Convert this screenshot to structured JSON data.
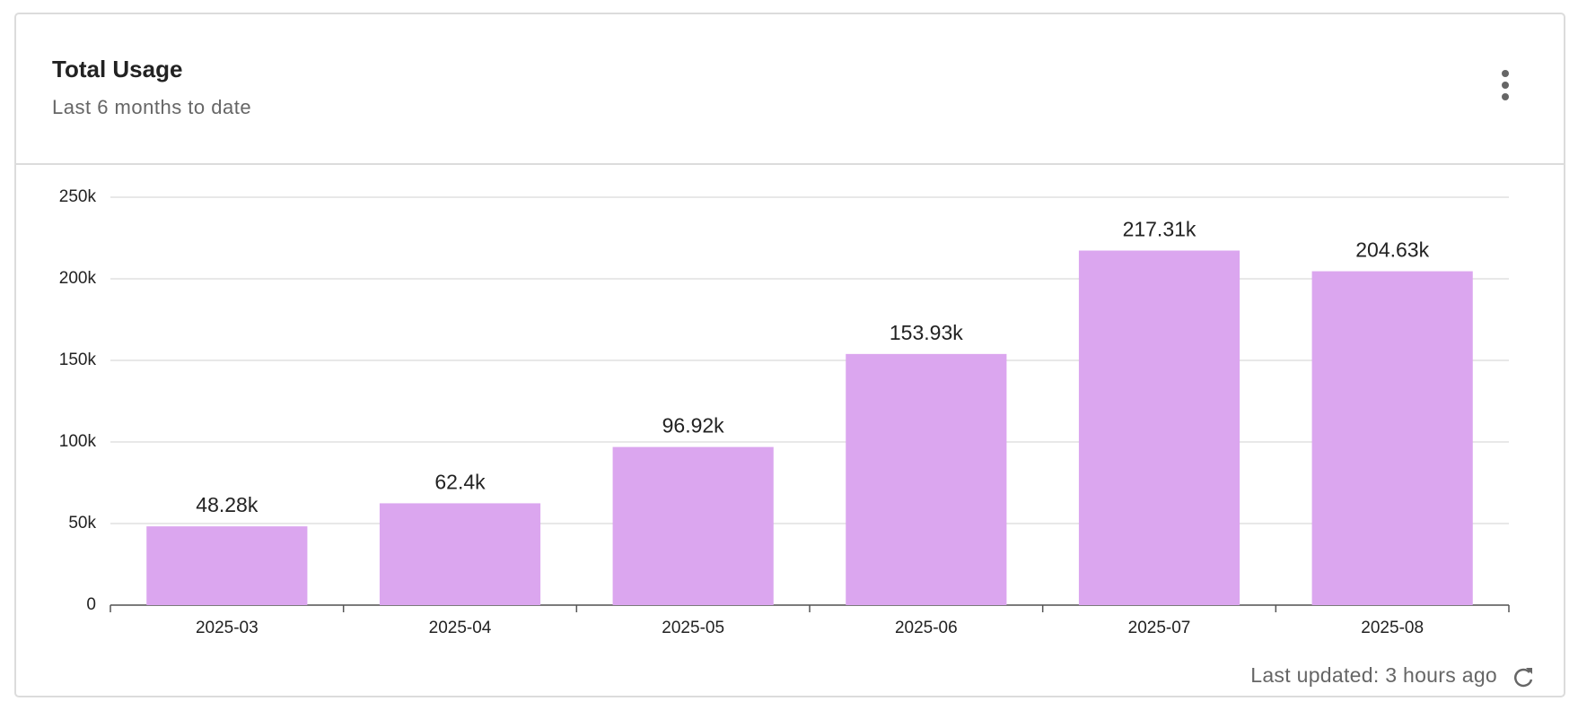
{
  "chart_data": {
    "type": "bar",
    "title": "Total Usage",
    "subtitle": "Last 6 months to date",
    "categories": [
      "2025-03",
      "2025-04",
      "2025-05",
      "2025-06",
      "2025-07",
      "2025-08"
    ],
    "values": [
      48280,
      62400,
      96920,
      153930,
      217310,
      204630
    ],
    "value_labels": [
      "48.28k",
      "62.4k",
      "96.92k",
      "153.93k",
      "217.31k",
      "204.63k"
    ],
    "color": "#dba6ef",
    "ylim": [
      0,
      250000
    ],
    "yticks": [
      {
        "value": 0,
        "label": "0"
      },
      {
        "value": 50000,
        "label": "50k"
      },
      {
        "value": 100000,
        "label": "100k"
      },
      {
        "value": 150000,
        "label": "150k"
      },
      {
        "value": 200000,
        "label": "200k"
      },
      {
        "value": 250000,
        "label": "250k"
      }
    ],
    "grid": true,
    "footer": "Last updated: 3 hours ago"
  }
}
